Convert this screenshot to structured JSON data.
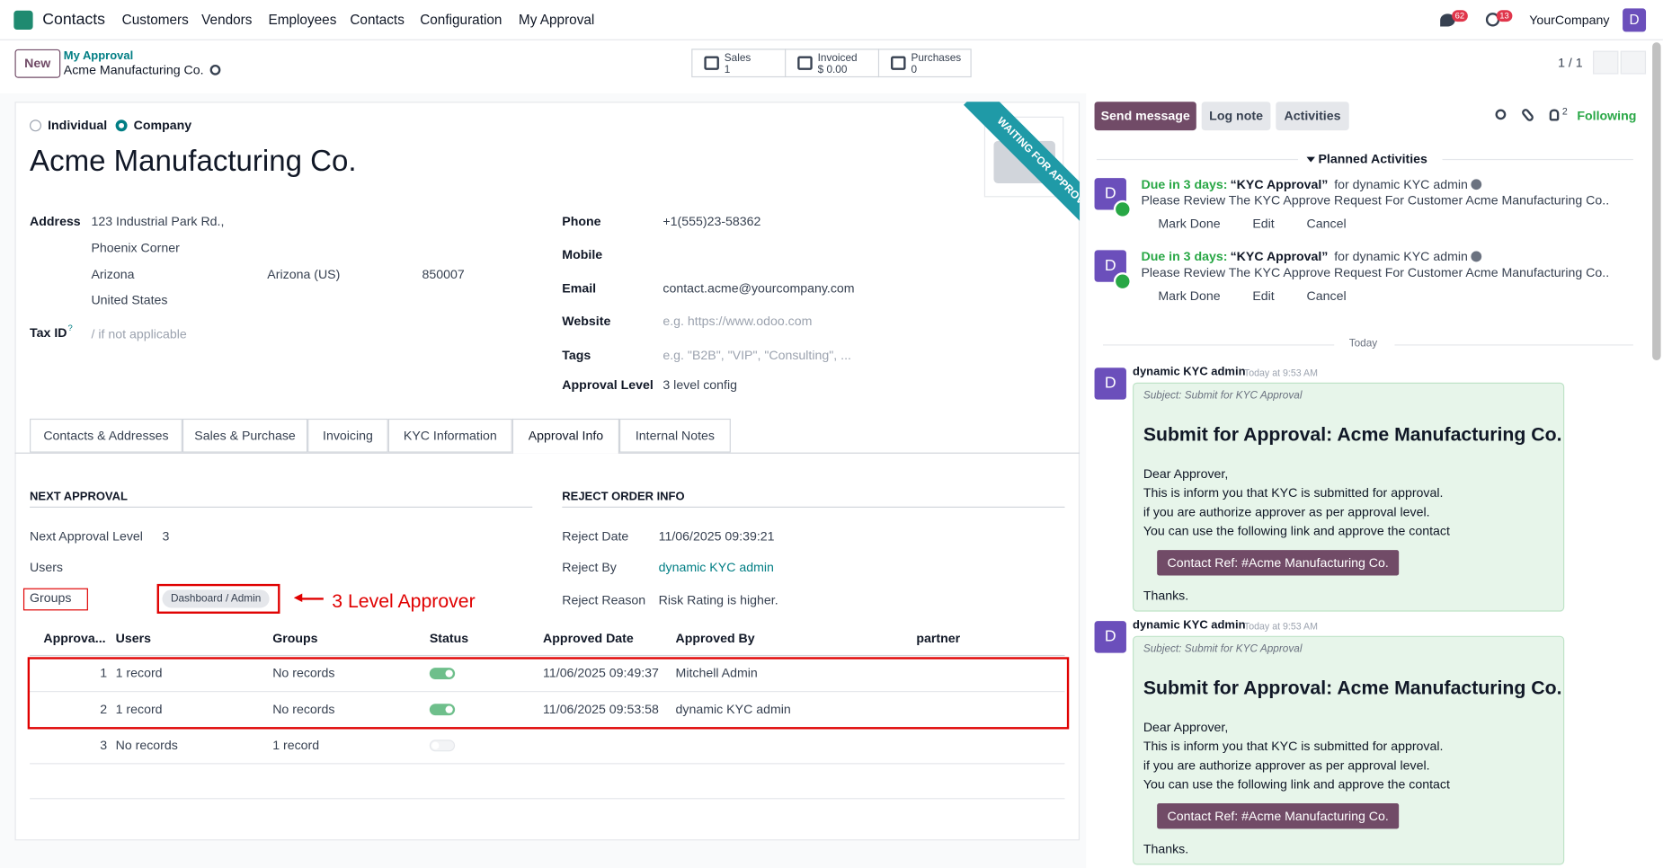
{
  "navbar": {
    "app": "Contacts",
    "menu": [
      "Customers",
      "Vendors",
      "Employees",
      "Contacts",
      "Configuration",
      "My Approval"
    ],
    "messages_badge": "62",
    "activities_badge": "13",
    "company": "YourCompany",
    "avatar": "D"
  },
  "control_panel": {
    "new": "New",
    "breadcrumb": "My Approval",
    "record": "Acme Manufacturing Co.",
    "smart_buttons": [
      {
        "label": "Sales",
        "value": "1"
      },
      {
        "label": "Invoiced",
        "value": "$ 0.00"
      },
      {
        "label": "Purchases",
        "value": "0"
      }
    ],
    "pager": "1 / 1"
  },
  "form": {
    "company_type": [
      "Individual",
      "Company"
    ],
    "name": "Acme Manufacturing Co.",
    "ribbon": "WAITING FOR APPROVAL",
    "address": {
      "label": "Address",
      "street": "123 Industrial Park Rd.,",
      "street2": "Phoenix Corner",
      "city": "Arizona",
      "state": "Arizona (US)",
      "zip": "850007",
      "country": "United States"
    },
    "tax_id": {
      "label": "Tax ID",
      "help": "?",
      "placeholder": "/ if not applicable"
    },
    "right_fields": [
      {
        "label": "Phone",
        "value": "+1(555)23-58362"
      },
      {
        "label": "Mobile"
      },
      {
        "label": "Email",
        "value": "contact.acme@yourcompany.com"
      },
      {
        "label": "Website",
        "placeholder": "e.g. https://www.odoo.com"
      },
      {
        "label": "Tags",
        "placeholder": "e.g. \"B2B\", \"VIP\", \"Consulting\", ..."
      },
      {
        "label": "Approval Level",
        "value": "3 level config"
      }
    ],
    "tabs": [
      "Contacts & Addresses",
      "Sales & Purchase",
      "Invoicing",
      "KYC Information",
      "Approval Info",
      "Internal Notes"
    ],
    "active_tab": 4,
    "next_approval": {
      "heading": "NEXT APPROVAL",
      "level_label": "Next Approval Level",
      "level": "3",
      "users_label": "Users",
      "groups_label": "Groups",
      "group_tag": "Dashboard / Admin"
    },
    "annotation": "3 Level Approver",
    "reject": {
      "heading": "REJECT ORDER INFO",
      "fields": [
        {
          "label": "Reject Date",
          "value": "11/06/2025 09:39:21"
        },
        {
          "label": "Reject By",
          "value": "dynamic KYC admin"
        },
        {
          "label": "Reject Reason",
          "value": "Risk Rating is higher."
        }
      ]
    },
    "table": {
      "columns": [
        "Approva...",
        "Users",
        "Groups",
        "Status",
        "Approved Date",
        "Approved By",
        "partner"
      ],
      "rows": [
        {
          "seq": "1",
          "users": "1 record",
          "groups": "No records",
          "status": true,
          "date": "11/06/2025 09:49:37",
          "by": "Mitchell Admin"
        },
        {
          "seq": "2",
          "users": "1 record",
          "groups": "No records",
          "status": true,
          "date": "11/06/2025 09:53:58",
          "by": "dynamic KYC admin"
        },
        {
          "seq": "3",
          "users": "No records",
          "groups": "1 record",
          "status": false
        }
      ]
    }
  },
  "chatter": {
    "buttons": [
      "Send message",
      "Log note",
      "Activities"
    ],
    "followers": "2",
    "following": "Following",
    "planned": "Planned Activities",
    "activities": [
      {
        "due": "Due in 3 days:",
        "title": "“KYC Approval”",
        "for": "for dynamic KYC admin",
        "note": "Please Review The KYC Approve Request For Customer Acme Manufacturing Co.."
      },
      {
        "due": "Due in 3 days:",
        "title": "“KYC Approval”",
        "for": "for dynamic KYC admin",
        "note": "Please Review The KYC Approve Request For Customer Acme Manufacturing Co.."
      }
    ],
    "activity_actions": [
      "Mark Done",
      "Edit",
      "Cancel"
    ],
    "separator": "Today",
    "messages": [
      {
        "author": "dynamic KYC admin",
        "time": "Today at 9:53 AM",
        "subject": "Subject: Submit for KYC Approval",
        "heading": "Submit for Approval: Acme Manufacturing Co.",
        "lines": [
          "Dear Approver,",
          "This is inform you that KYC is submitted for approval.",
          "if you are authorize approver as per approval level.",
          "You can use the following link and approve the contact"
        ],
        "button": "Contact Ref: #Acme Manufacturing Co.",
        "closing": "Thanks."
      },
      {
        "author": "dynamic KYC admin",
        "time": "Today at 9:53 AM",
        "subject": "Subject: Submit for KYC Approval",
        "heading": "Submit for Approval: Acme Manufacturing Co.",
        "lines": [
          "Dear Approver,",
          "This is inform you that KYC is submitted for approval.",
          "if you are authorize approver as per approval level.",
          "You can use the following link and approve the contact"
        ],
        "button": "Contact Ref: #Acme Manufacturing Co.",
        "closing": "Thanks."
      }
    ]
  }
}
